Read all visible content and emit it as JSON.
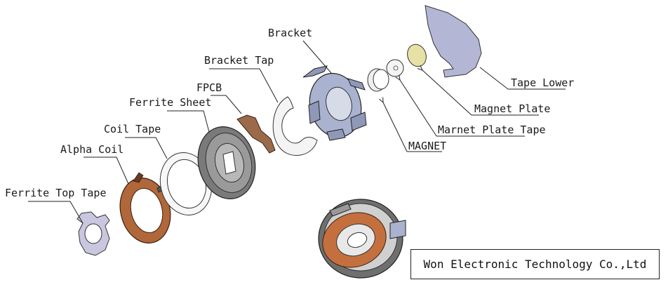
{
  "labels": {
    "ferrite_top_tape": "Ferrite Top Tape",
    "alpha_coil": "Alpha Coil",
    "coil_tape": "Coil Tape",
    "ferrite_sheet": "Ferrite Sheet",
    "fpcb": "FPCB",
    "bracket_tap": "Bracket Tap",
    "bracket": "Bracket",
    "magnet": "MAGNET",
    "marnet_plate_tape": "Marnet Plate Tape",
    "magnet_plate": "Magnet Plate",
    "tape_lower": "Tape Lower"
  },
  "company": "Won Electronic Technology Co.,Ltd",
  "colors": {
    "copper": "#b0673a",
    "copper_dark": "#6b3a1e",
    "ferrite_gray": "#7a7a7a",
    "lavender": "#c9c6e0",
    "bracket_blue": "#a9b3cf",
    "fpcb_brown": "#9b6a4a",
    "magnet_plate_yellow": "#e7e1a6"
  }
}
